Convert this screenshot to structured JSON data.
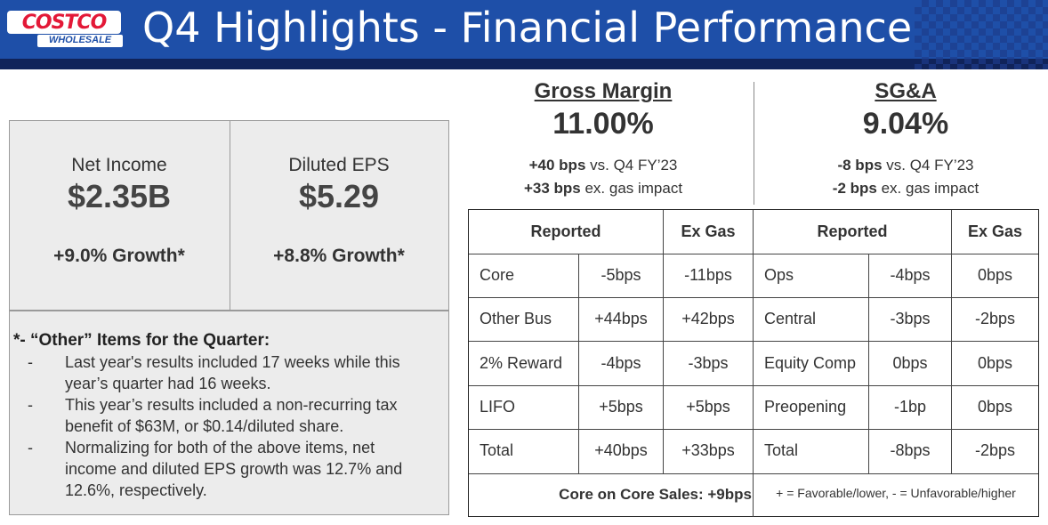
{
  "header": {
    "logo_top": "COSTCO",
    "logo_bottom": "WHOLESALE",
    "title": "Q4 Highlights - Financial Performance"
  },
  "metrics": [
    {
      "label": "Net Income",
      "value": "$2.35B",
      "growth": "+9.0% Growth*"
    },
    {
      "label": "Diluted EPS",
      "value": "$5.29",
      "growth": "+8.8% Growth*"
    }
  ],
  "notes": {
    "title": "*- “Other” Items for the Quarter:",
    "dash": "-",
    "items": [
      {
        "lines": [
          "Last year's results included 17 weeks while this",
          "year’s quarter had 16 weeks."
        ]
      },
      {
        "lines": [
          "This year’s results included a non-recurring tax",
          "benefit of $63M, or $0.14/diluted share."
        ]
      },
      {
        "lines": [
          "Normalizing for both of the above items, net",
          "income and diluted EPS growth was 12.7% and",
          "12.6%, respectively."
        ]
      }
    ]
  },
  "gross_margin": {
    "title": "Gross Margin",
    "value": "11.00%",
    "line1_bold": "+40 bps",
    "line1_rest": " vs. Q4 FY’23",
    "line2_bold": "+33 bps",
    "line2_rest": " ex. gas impact"
  },
  "sga": {
    "title": "SG&A",
    "value": "9.04%",
    "line1_bold": "-8 bps",
    "line1_rest": " vs. Q4 FY’23",
    "line2_bold": "-2 bps",
    "line2_rest": " ex. gas impact"
  },
  "table": {
    "headers": [
      "Reported",
      "Ex Gas",
      "Reported",
      "Ex Gas"
    ],
    "rows": [
      [
        "Core",
        "-5bps",
        "-11bps",
        "Ops",
        "-4bps",
        "0bps"
      ],
      [
        "Other Bus",
        "+44bps",
        "+42bps",
        "Central",
        "-3bps",
        "-2bps"
      ],
      [
        "2% Reward",
        "-4bps",
        "-3bps",
        "Equity Comp",
        "0bps",
        "0bps"
      ],
      [
        "LIFO",
        "+5bps",
        "+5bps",
        "Preopening",
        "-1bp",
        "0bps"
      ],
      [
        "Total",
        "+40bps",
        "+33bps",
        "Total",
        "-8bps",
        "-2bps"
      ]
    ],
    "footer_left": "Core on Core Sales: +9bps",
    "footer_right": "+ = Favorable/lower, - = Unfavorable/higher"
  },
  "colors": {
    "header_blue": "#1e4fa8",
    "header_dark": "#10235a",
    "logo_red": "#e31837",
    "card_gray": "#ececec"
  }
}
